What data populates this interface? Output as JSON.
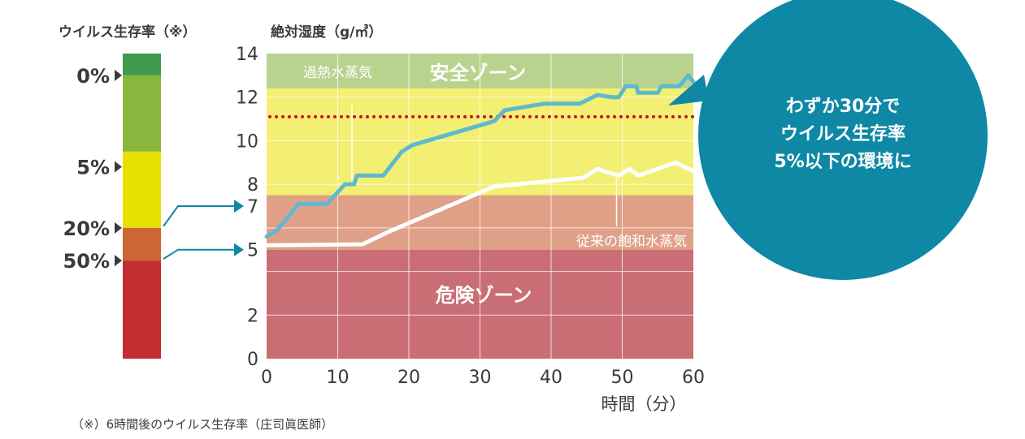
{
  "chart_data": {
    "type": "line",
    "left_scale_title": "ウイルス生存率（※）",
    "y_axis_title": "絶対湿度（g/㎥）",
    "x_axis_title": "時間（分）",
    "footnote": "（※）6時間後のウイルス生存率（庄司眞医師）",
    "x_ticks": [
      0,
      10,
      20,
      30,
      40,
      50,
      60
    ],
    "y_ticks": [
      0,
      2,
      5,
      7,
      8,
      10,
      12,
      14
    ],
    "xlim": [
      0,
      60
    ],
    "ylim": [
      0,
      14
    ],
    "grid": true,
    "zones": [
      {
        "name": "安全ゾーン",
        "from": 12.4,
        "to": 14,
        "color": "#b9d38f"
      },
      {
        "name": "",
        "from": 7.5,
        "to": 12.4,
        "color": "#f3ef72"
      },
      {
        "name": "",
        "from": 5,
        "to": 7.5,
        "color": "#e0a088"
      },
      {
        "name": "危険ゾーン",
        "from": 0,
        "to": 5,
        "color": "#c96e74"
      }
    ],
    "threshold_line": {
      "y": 11.1,
      "color": "#c8102e"
    },
    "series": [
      {
        "name": "過熱水蒸気",
        "color": "#5fb9cc",
        "points": [
          [
            0,
            5.6
          ],
          [
            1.5,
            5.9
          ],
          [
            3,
            6.5
          ],
          [
            4.5,
            7.1
          ],
          [
            8.5,
            7.1
          ],
          [
            11,
            8.0
          ],
          [
            12.3,
            8.0
          ],
          [
            12.7,
            8.4
          ],
          [
            16.4,
            8.4
          ],
          [
            19,
            9.5
          ],
          [
            20.5,
            9.8
          ],
          [
            32,
            10.9
          ],
          [
            33.5,
            11.4
          ],
          [
            39,
            11.7
          ],
          [
            44,
            11.7
          ],
          [
            46.5,
            12.1
          ],
          [
            48.5,
            12.0
          ],
          [
            49.5,
            12.0
          ],
          [
            50.5,
            12.5
          ],
          [
            52,
            12.5
          ],
          [
            52.2,
            12.2
          ],
          [
            55,
            12.2
          ],
          [
            55.5,
            12.5
          ],
          [
            58,
            12.5
          ],
          [
            59.3,
            13.0
          ],
          [
            60,
            12.7
          ]
        ]
      },
      {
        "name": "従来の飽和水蒸気",
        "color": "#ffffff",
        "points": [
          [
            0,
            5.2
          ],
          [
            13.5,
            5.25
          ],
          [
            17,
            5.8
          ],
          [
            32,
            7.9
          ],
          [
            44.5,
            8.3
          ],
          [
            46.5,
            8.7
          ],
          [
            49.5,
            8.4
          ],
          [
            51,
            8.7
          ],
          [
            52.3,
            8.4
          ],
          [
            57.5,
            9.0
          ],
          [
            60,
            8.6
          ]
        ]
      }
    ],
    "left_scale": {
      "segments": [
        {
          "from": 13.0,
          "to": 14.0,
          "color": "#3f9a4c"
        },
        {
          "from": 9.5,
          "to": 13.0,
          "color": "#8ab63d"
        },
        {
          "from": 6.0,
          "to": 9.5,
          "color": "#e8e000"
        },
        {
          "from": 4.5,
          "to": 6.0,
          "color": "#cc6634"
        },
        {
          "from": 0.0,
          "to": 4.5,
          "color": "#c12f33"
        }
      ],
      "markers": [
        {
          "label": "0%",
          "level": 13.0
        },
        {
          "label": "5%",
          "level": 8.8
        },
        {
          "label": "20%",
          "level": 6.0
        },
        {
          "label": "50%",
          "level": 4.5
        }
      ],
      "links": [
        {
          "from_marker": "20%",
          "to_tick": 7
        },
        {
          "from_marker": "50%",
          "to_tick": 5
        }
      ]
    },
    "callout": {
      "lines": [
        "わずか30分で",
        "ウイルス生存率",
        "5%以下の環境に"
      ],
      "color": "#0e88a5"
    }
  }
}
